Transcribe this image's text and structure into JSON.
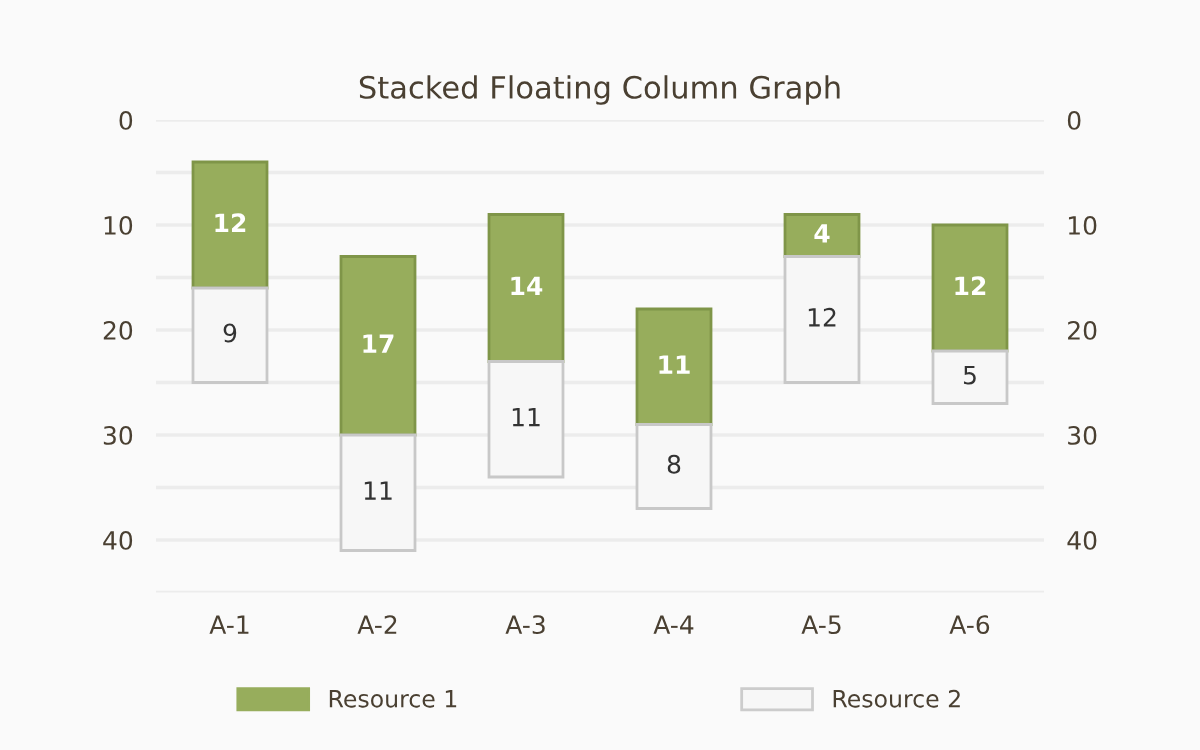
{
  "chart_data": {
    "type": "bar",
    "title": "Stacked Floating Column Graph",
    "categories": [
      "A-1",
      "A-2",
      "A-3",
      "A-4",
      "A-5",
      "A-6"
    ],
    "series": [
      {
        "name": "Resource 1",
        "color": "#97ad5c",
        "base": [
          4,
          13,
          9,
          18,
          9,
          10
        ],
        "values": [
          12,
          17,
          14,
          11,
          4,
          12
        ]
      },
      {
        "name": "Resource 2",
        "color": "#f7f7f7",
        "base": [
          16,
          30,
          23,
          29,
          13,
          22
        ],
        "values": [
          9,
          11,
          11,
          8,
          12,
          5
        ]
      }
    ],
    "data_labels": true,
    "ylim": [
      45,
      0
    ],
    "yticks": [
      0,
      {
        "value": 5,
        "label": null
      },
      10,
      {
        "value": 15,
        "label": null
      },
      20,
      {
        "value": 25,
        "label": null
      },
      30,
      {
        "value": 35,
        "label": null
      },
      40,
      {
        "value": 45,
        "label": null
      }
    ],
    "y2lim": [
      45,
      0
    ],
    "y2ticks": [
      0,
      10,
      20,
      30,
      40
    ],
    "grid": "y",
    "legend": "bottom"
  }
}
